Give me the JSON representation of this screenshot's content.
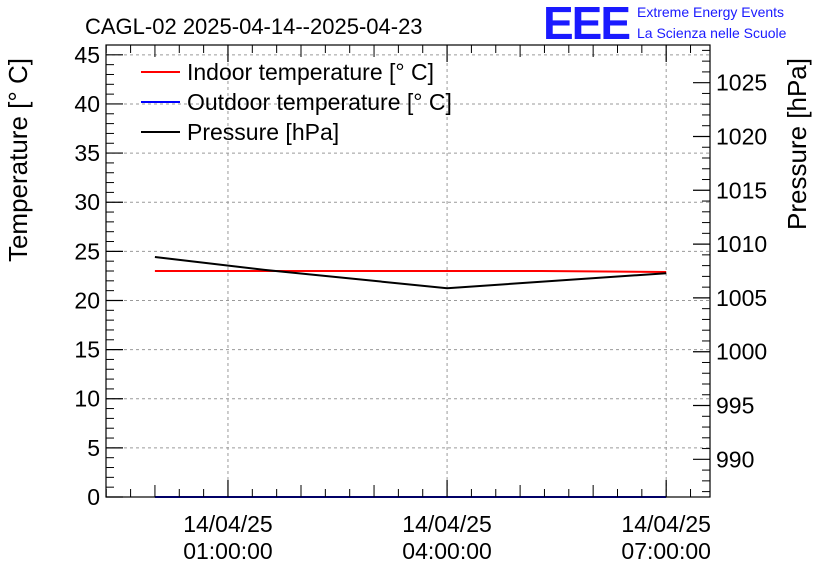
{
  "chart_data": {
    "type": "line",
    "title": "CAGL-02 2025-04-14--2025-04-23",
    "ylabel": "Temperature [° C]",
    "y2label": "Pressure [hPa]",
    "ylim": [
      0,
      46
    ],
    "y2lim": [
      986.5,
      1028.5
    ],
    "yticks": [
      0,
      5,
      10,
      15,
      20,
      25,
      30,
      35,
      40,
      45
    ],
    "y2ticks": [
      990,
      995,
      1000,
      1005,
      1010,
      1015,
      1020,
      1025
    ],
    "xlim": [
      -0.67,
      7.6
    ],
    "xticks": [
      {
        "x": 1,
        "date": "14/04/25",
        "time": "01:00:00"
      },
      {
        "x": 4,
        "date": "14/04/25",
        "time": "04:00:00"
      },
      {
        "x": 7,
        "date": "14/04/25",
        "time": "07:00:00"
      }
    ],
    "grid": true,
    "legend_position": "top-left",
    "series": [
      {
        "name": "Indoor temperature [° C]",
        "color": "#ff0000",
        "axis": "left",
        "x": [
          0,
          3,
          5.3,
          7
        ],
        "y": [
          23.0,
          23.0,
          23.0,
          22.9
        ]
      },
      {
        "name": "Outdoor temperature [° C]",
        "color": "#0000ff",
        "axis": "left",
        "x": [
          0,
          7
        ],
        "y": [
          0.0,
          0.0
        ]
      },
      {
        "name": "Pressure [hPa]",
        "color": "#000000",
        "axis": "right",
        "x": [
          0,
          1.5,
          4,
          7
        ],
        "y": [
          1008.8,
          1007.6,
          1005.9,
          1007.3
        ]
      }
    ]
  },
  "logo": {
    "mark": "EEE",
    "line1": "Extreme Energy Events",
    "line2": "La Scienza nelle Scuole",
    "color": "#1a1aff"
  }
}
